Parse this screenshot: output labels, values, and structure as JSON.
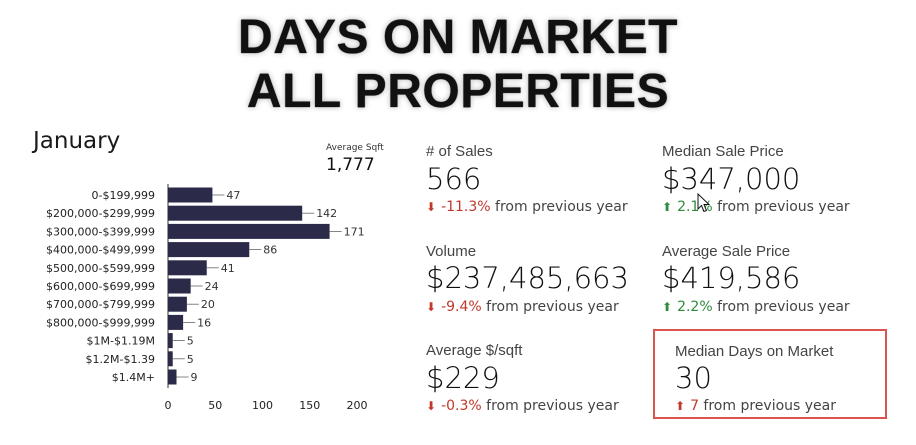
{
  "header": {
    "line1": "DAYS ON MARKET",
    "line2": "ALL PROPERTIES"
  },
  "chart_data": {
    "type": "bar",
    "orientation": "horizontal",
    "title": "January",
    "categories": [
      "0-$199,999",
      "$200,000-$299,999",
      "$300,000-$399,999",
      "$400,000-$499,999",
      "$500,000-$599,999",
      "$600,000-$699,999",
      "$700,000-$799,999",
      "$800,000-$999,999",
      "$1M-$1.19M",
      "$1.2M-$1.39",
      "$1.4M+"
    ],
    "values": [
      47,
      142,
      171,
      86,
      41,
      24,
      20,
      16,
      5,
      5,
      9
    ],
    "xlim": [
      0,
      200
    ],
    "xticks": [
      0,
      50,
      100,
      150,
      200
    ],
    "xlabel": "",
    "ylabel": "",
    "bar_color": "#2b2a48",
    "grid": false,
    "legend": "none"
  },
  "avg_sqft": {
    "label": "Average Sqft",
    "value": "1,777"
  },
  "kpis": {
    "sales": {
      "label": "# of Sales",
      "value": "566",
      "change": "-11.3%",
      "suffix": " from previous year",
      "direction": "down"
    },
    "median_price": {
      "label": "Median Sale Price",
      "value": "$347,000",
      "change": "2.1%",
      "suffix": " from previous year",
      "direction": "up"
    },
    "volume": {
      "label": "Volume",
      "value": "$237,485,663",
      "change": "-9.4%",
      "suffix": " from previous year",
      "direction": "down"
    },
    "avg_price": {
      "label": "Average Sale Price",
      "value": "$419,586",
      "change": "2.2%",
      "suffix": " from previous year",
      "direction": "up"
    },
    "price_sqft": {
      "label": "Average $/sqft",
      "value": "$229",
      "change": "-0.3%",
      "suffix": " from previous year",
      "direction": "down"
    },
    "median_dom": {
      "label": "Median Days on Market",
      "value": "30",
      "change": "7",
      "suffix": " from previous year",
      "direction": "up"
    }
  },
  "colors": {
    "negative": "#c0392b",
    "positive": "#2e8b3e",
    "highlight": "#d9534f"
  }
}
